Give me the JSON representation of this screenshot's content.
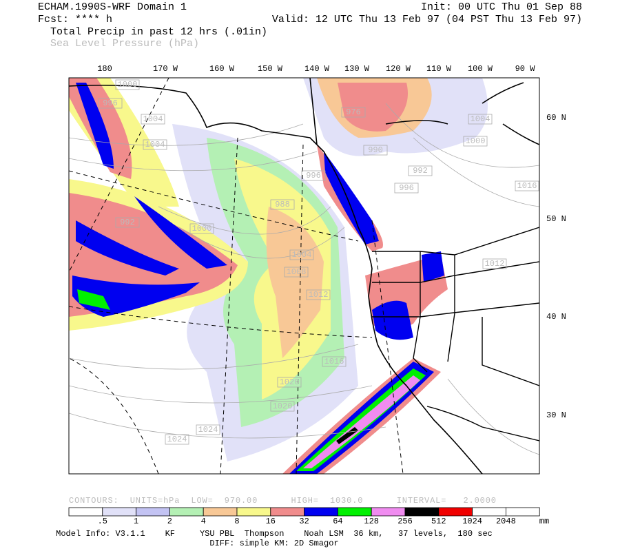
{
  "header": {
    "title": "ECHAM.1990S-WRF Domain 1",
    "forecast": "Fcst: **** h",
    "field_primary": "Total Precip in past 12 hrs (.01in)",
    "field_secondary": "Sea Level Pressure (hPa)",
    "init": "Init: 00 UTC Thu 01 Sep 88",
    "valid": "Valid: 12 UTC Thu 13 Feb 97 (04 PST Thu 13 Feb 97)"
  },
  "map": {
    "longitude_labels": [
      "180",
      "170 W",
      "160 W",
      "150 W",
      "140 W",
      "130 W",
      "120 W",
      "110 W",
      "100 W",
      "90 W"
    ],
    "latitude_labels": [
      "60 N",
      "50 N",
      "40 N",
      "30 N"
    ],
    "pressure_labels": [
      "1000",
      "996",
      "1004",
      "1004",
      "992",
      "1000",
      "996",
      "988",
      "1004",
      "1008",
      "1012",
      "976",
      "990",
      "992",
      "996",
      "1004",
      "1000",
      "1012",
      "1016",
      "1016",
      "1020",
      "1020",
      "1024",
      "1024"
    ]
  },
  "contour_info": "CONTOURS:  UNITS=hPa  LOW=  970.00      HIGH=  1030.0      INTERVAL=   2.0000",
  "color_bar": {
    "colors": [
      "#ffffff",
      "#e1e1f8",
      "#c3c3f3",
      "#b4f0b4",
      "#f8c896",
      "#f8f88c",
      "#f08c8c",
      "#0000f0",
      "#00f000",
      "#f08cf0",
      "#000000",
      "#f00000",
      "#ffffff",
      "#ffffff"
    ],
    "labels": [
      ".5",
      "1",
      "2",
      "4",
      "8",
      "16",
      "32",
      "64",
      "128",
      "256",
      "512",
      "1024",
      "2048"
    ],
    "unit": "mm"
  },
  "footer": {
    "model_info": "Model Info: V3.1.1    KF     YSU PBL  Thompson    Noah LSM  36 km,   37 levels,  180 sec",
    "diffusion": "DIFF: simple KM: 2D Smagor"
  }
}
